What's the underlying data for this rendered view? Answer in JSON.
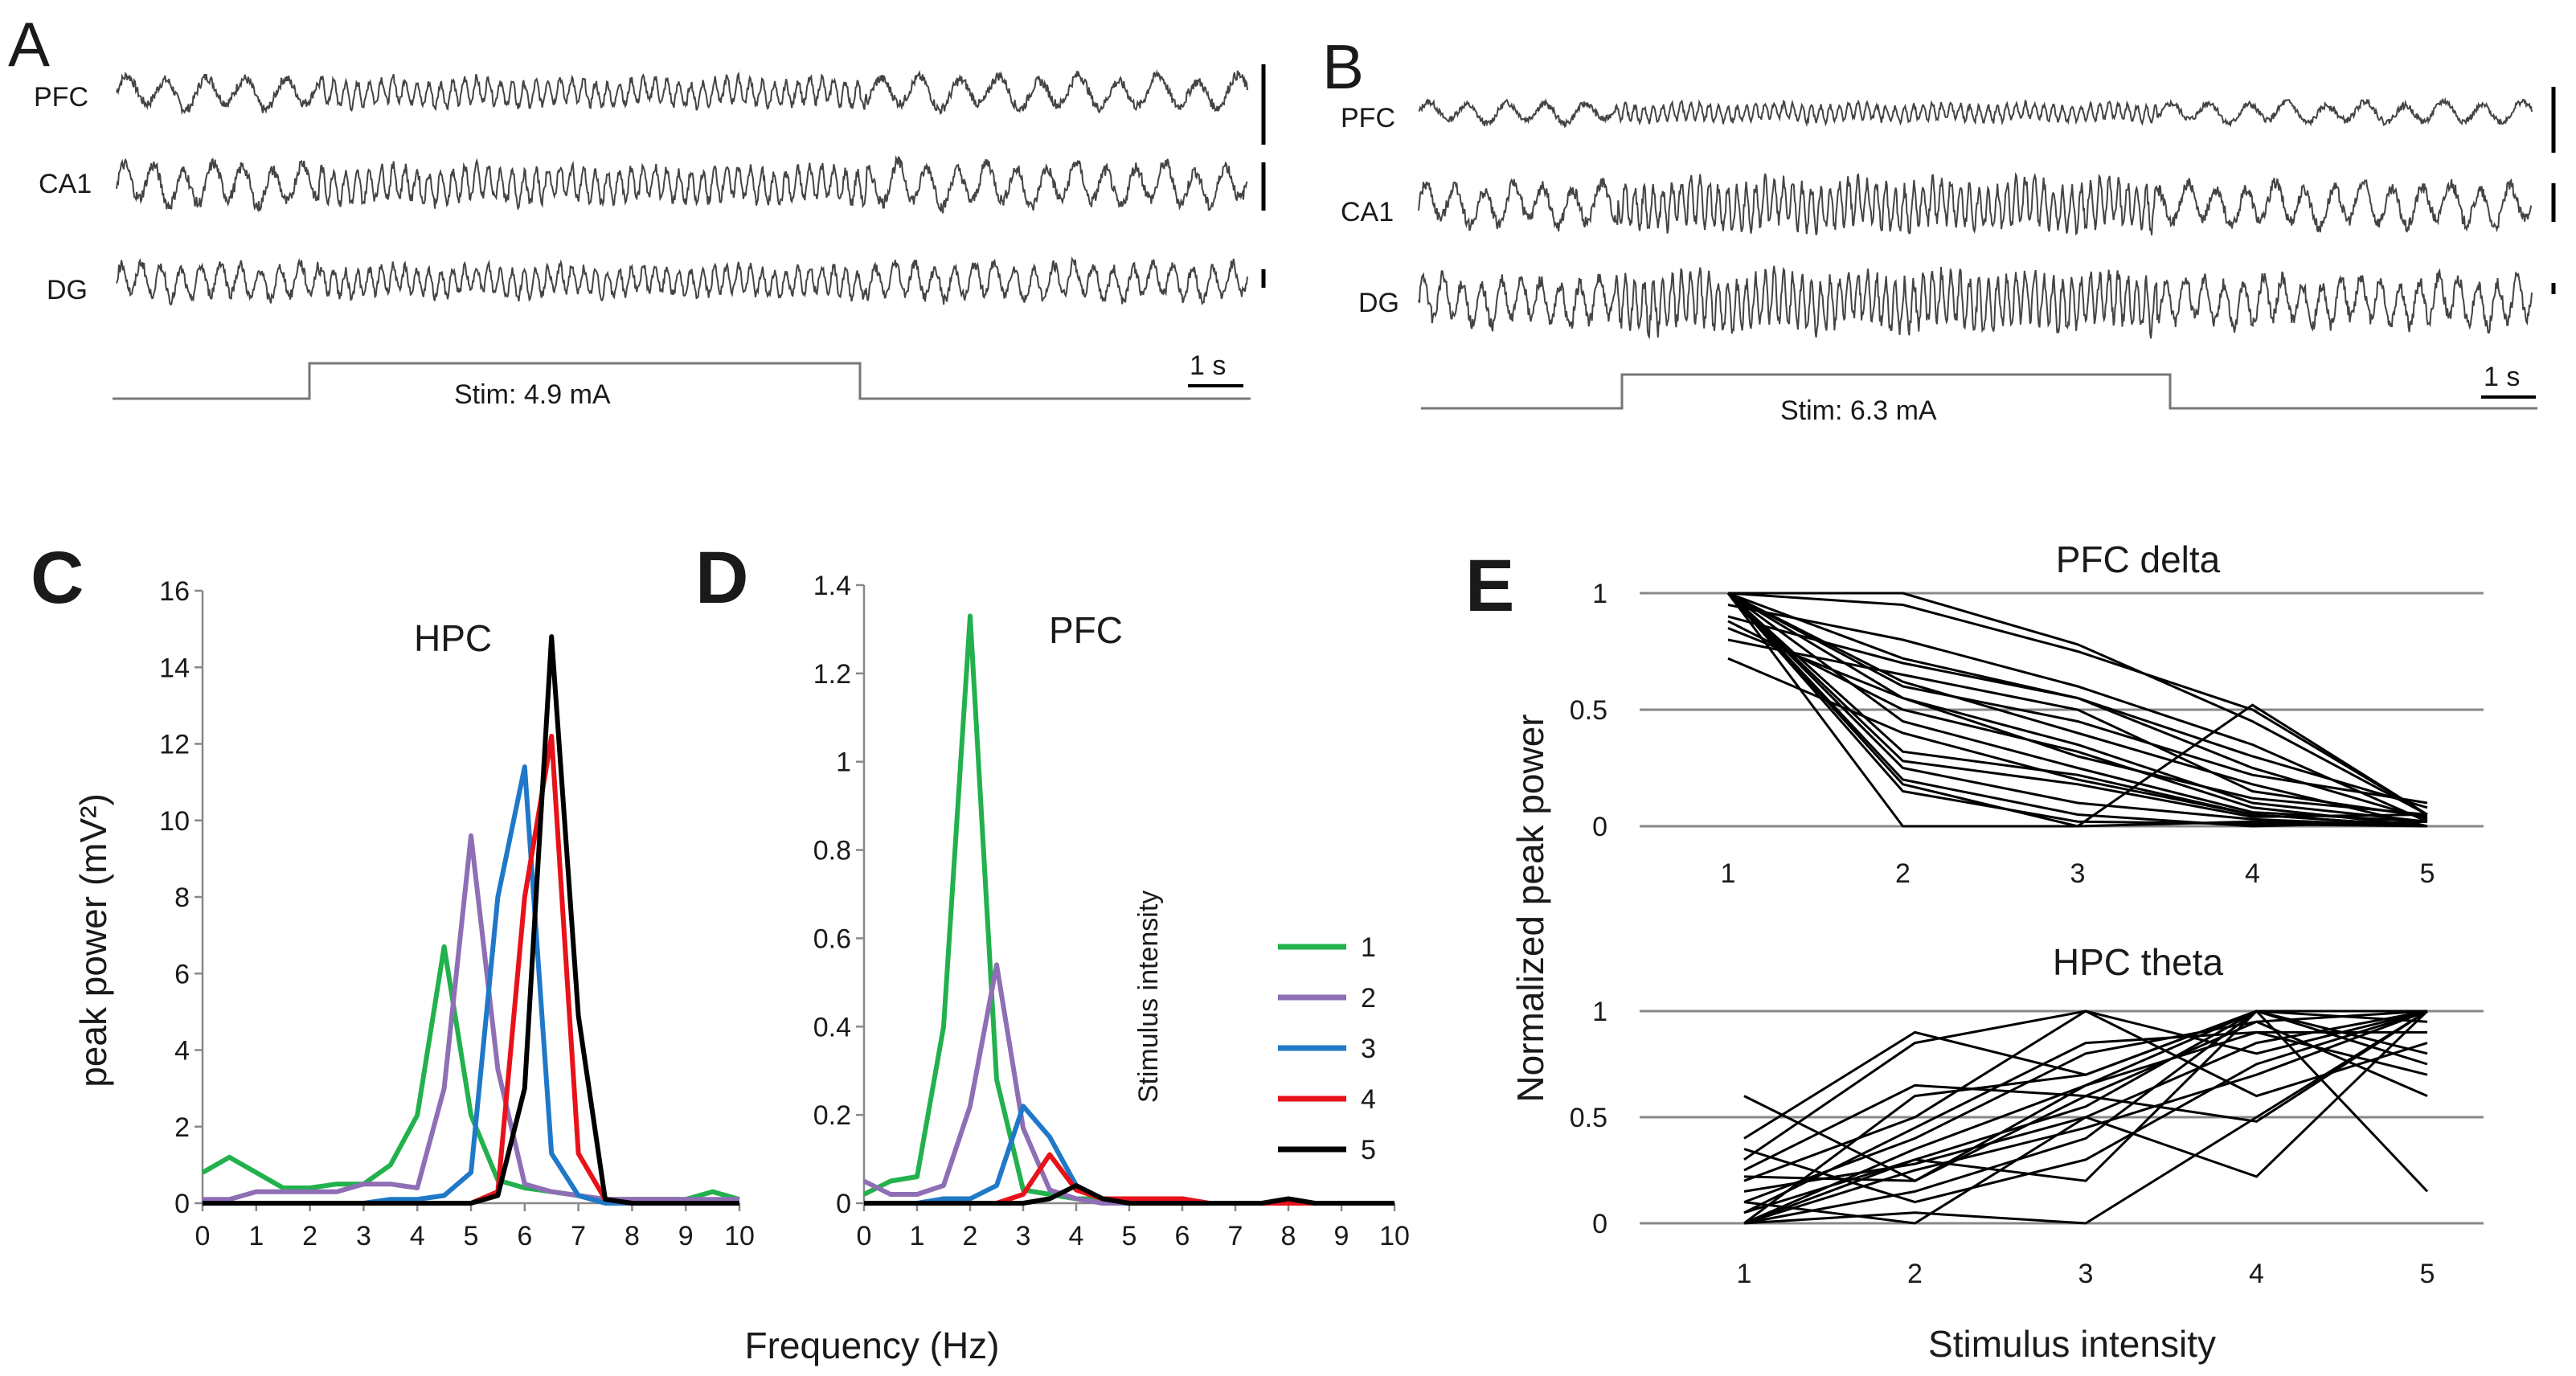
{
  "figure": {
    "panel_labels": [
      "A",
      "B",
      "C",
      "D",
      "E"
    ]
  },
  "chart_data": [
    {
      "panel": "A",
      "type": "line",
      "description_labels": [
        "PFC",
        "CA1",
        "DG"
      ],
      "stim_label": "Stim: 4.9 mA",
      "scalebar_label": "1 s",
      "trace_params": {
        "PFC": {
          "pre_freq_hz": 1.5,
          "stim_freq_hz": 5.0
        },
        "CA1": {
          "pre_freq_hz": 2.0,
          "stim_freq_hz": 5.0
        },
        "DG": {
          "pre_freq_hz": 3.0,
          "stim_freq_hz": 5.0
        }
      },
      "stim_on_s": 3.4,
      "stim_off_s": 12.6,
      "duration_s": 19
    },
    {
      "panel": "B",
      "type": "line",
      "description_labels": [
        "PFC",
        "CA1",
        "DG"
      ],
      "stim_label": "Stim: 6.3 mA",
      "scalebar_label": "1 s",
      "trace_params": {
        "PFC": {
          "pre_freq_hz": 1.5,
          "stim_freq_hz": 6.3
        },
        "CA1": {
          "pre_freq_hz": 2.0,
          "stim_freq_hz": 6.3
        },
        "DG": {
          "pre_freq_hz": 3.0,
          "stim_freq_hz": 6.3
        }
      },
      "stim_on_s": 3.4,
      "stim_off_s": 12.6,
      "duration_s": 19
    },
    {
      "panel": "C",
      "type": "line",
      "title": "HPC",
      "xlabel": "Frequency (Hz)",
      "ylabel": "peak power (mV²)",
      "xlim": [
        0,
        10
      ],
      "ylim": [
        0,
        16
      ],
      "xticks": [
        "0",
        "1",
        "2",
        "3",
        "4",
        "5",
        "6",
        "7",
        "8",
        "9",
        "10"
      ],
      "yticks": [
        "0",
        "2",
        "4",
        "6",
        "8",
        "10",
        "12",
        "14",
        "16"
      ],
      "x": [
        0,
        0.5,
        1,
        1.5,
        2,
        2.5,
        3,
        3.5,
        4,
        4.5,
        5,
        5.5,
        6,
        6.5,
        7,
        7.5,
        8,
        8.5,
        9,
        9.5,
        10
      ],
      "series": [
        {
          "name": "1",
          "color": "#22b14c",
          "values": [
            0.8,
            1.2,
            0.8,
            0.4,
            0.4,
            0.5,
            0.5,
            1.0,
            2.3,
            6.7,
            2.3,
            0.6,
            0.4,
            0.3,
            0.2,
            0.1,
            0.1,
            0.1,
            0.1,
            0.3,
            0.1
          ]
        },
        {
          "name": "2",
          "color": "#8e6fb5",
          "values": [
            0.1,
            0.1,
            0.3,
            0.3,
            0.3,
            0.3,
            0.5,
            0.5,
            0.4,
            3.0,
            9.6,
            3.5,
            0.5,
            0.3,
            0.2,
            0.1,
            0.1,
            0.1,
            0.1,
            0.1,
            0.1
          ]
        },
        {
          "name": "3",
          "color": "#1f78c8",
          "values": [
            0,
            0,
            0,
            0,
            0,
            0,
            0,
            0.1,
            0.1,
            0.2,
            0.8,
            8.0,
            11.4,
            1.3,
            0.2,
            0,
            0,
            0,
            0,
            0,
            0
          ]
        },
        {
          "name": "4",
          "color": "#e8121a",
          "values": [
            0,
            0,
            0,
            0,
            0,
            0,
            0,
            0,
            0,
            0,
            0,
            0.3,
            8.0,
            12.2,
            1.3,
            0.1,
            0,
            0,
            0,
            0,
            0
          ]
        },
        {
          "name": "5",
          "color": "#000000",
          "values": [
            0,
            0,
            0,
            0,
            0,
            0,
            0,
            0,
            0,
            0,
            0,
            0.2,
            3.0,
            14.8,
            4.9,
            0.1,
            0,
            0,
            0,
            0,
            0
          ]
        }
      ]
    },
    {
      "panel": "D",
      "type": "line",
      "title": "PFC",
      "xlabel": "Frequency (Hz)",
      "ylabel": "",
      "xlim": [
        0,
        10
      ],
      "ylim": [
        0,
        1.4
      ],
      "xticks": [
        "0",
        "1",
        "2",
        "3",
        "4",
        "5",
        "6",
        "7",
        "8",
        "9",
        "10"
      ],
      "yticks": [
        "0",
        "0.2",
        "0.4",
        "0.6",
        "0.8",
        "1",
        "1.2",
        "1.4"
      ],
      "x": [
        0,
        0.5,
        1,
        1.5,
        2,
        2.5,
        3,
        3.5,
        4,
        4.5,
        5,
        5.5,
        6,
        6.5,
        7,
        7.5,
        8,
        8.5,
        9,
        9.5,
        10
      ],
      "legend_title": "Stimulus intensity",
      "series": [
        {
          "name": "1",
          "color": "#22b14c",
          "values": [
            0.02,
            0.05,
            0.06,
            0.4,
            1.33,
            0.28,
            0.03,
            0.02,
            0.01,
            0.01,
            0.01,
            0.01,
            0.01,
            0,
            0,
            0,
            0,
            0,
            0,
            0,
            0
          ]
        },
        {
          "name": "2",
          "color": "#8e6fb5",
          "values": [
            0.05,
            0.02,
            0.02,
            0.04,
            0.22,
            0.54,
            0.17,
            0.03,
            0.01,
            0,
            0,
            0,
            0,
            0,
            0,
            0,
            0,
            0,
            0,
            0,
            0
          ]
        },
        {
          "name": "3",
          "color": "#1f78c8",
          "values": [
            0,
            0,
            0,
            0.01,
            0.01,
            0.04,
            0.22,
            0.15,
            0.04,
            0.01,
            0,
            0,
            0,
            0,
            0,
            0,
            0,
            0,
            0,
            0,
            0
          ]
        },
        {
          "name": "4",
          "color": "#e8121a",
          "values": [
            0,
            0,
            0,
            0,
            0,
            0,
            0.02,
            0.11,
            0.03,
            0.01,
            0.01,
            0.01,
            0.01,
            0,
            0,
            0,
            0,
            0,
            0,
            0,
            0
          ]
        },
        {
          "name": "5",
          "color": "#000000",
          "values": [
            0,
            0,
            0,
            0,
            0,
            0,
            0,
            0.01,
            0.04,
            0.01,
            0,
            0,
            0,
            0,
            0,
            0,
            0.01,
            0,
            0,
            0,
            0
          ]
        }
      ]
    },
    {
      "panel": "E",
      "type": "line",
      "subplots": [
        {
          "title": "PFC delta",
          "categories": [
            "1",
            "2",
            "3",
            "4",
            "5"
          ],
          "ylim": [
            0,
            1
          ],
          "yticks": [
            "0",
            "0.5",
            "1"
          ],
          "series": [
            [
              1,
              0.95,
              0.75,
              0.5,
              0.05
            ],
            [
              1,
              1,
              0.78,
              0.45,
              0.05
            ],
            [
              0.95,
              0.8,
              0.6,
              0.35,
              0.02
            ],
            [
              0.9,
              0.7,
              0.55,
              0.3,
              0.08
            ],
            [
              1,
              0.72,
              0.55,
              0.25,
              0.03
            ],
            [
              1,
              0.6,
              0.45,
              0.22,
              0.1
            ],
            [
              0.85,
              0.55,
              0.35,
              0.1,
              0.02
            ],
            [
              1,
              0.55,
              0.3,
              0.12,
              0.05
            ],
            [
              0.88,
              0.5,
              0.32,
              0.08,
              0
            ],
            [
              1,
              0.45,
              0.25,
              0.06,
              0.02
            ],
            [
              0.72,
              0.4,
              0.2,
              0.05,
              0
            ],
            [
              1,
              0.32,
              0.22,
              0.05,
              0
            ],
            [
              1,
              0.28,
              0.18,
              0.04,
              0.05
            ],
            [
              1,
              0.25,
              0.1,
              0.03,
              0
            ],
            [
              1,
              0.2,
              0.05,
              0,
              0.02
            ],
            [
              1,
              0.18,
              0,
              0.02,
              0
            ],
            [
              1,
              0.15,
              0.02,
              0.01,
              0
            ],
            [
              1,
              0,
              0,
              0.52,
              0.05
            ],
            [
              0.8,
              0.65,
              0.5,
              0.15,
              0.04
            ],
            [
              1,
              0.62,
              0.4,
              0.18,
              0
            ]
          ]
        },
        {
          "title": "HPC theta",
          "categories": [
            "1",
            "2",
            "3",
            "4",
            "5"
          ],
          "ylim": [
            0,
            1
          ],
          "yticks": [
            "0",
            "0.5",
            "1"
          ],
          "series": [
            [
              0.6,
              0.2,
              0.65,
              1,
              0.15
            ],
            [
              0.4,
              0.9,
              0.7,
              1,
              1
            ],
            [
              0.3,
              0.85,
              1,
              0.8,
              1
            ],
            [
              0.2,
              0.5,
              1,
              0.6,
              0.85
            ],
            [
              0.1,
              0.4,
              0.8,
              0.95,
              1
            ],
            [
              0,
              0.35,
              0.65,
              0.9,
              0.9
            ],
            [
              0.05,
              0.3,
              0.55,
              1,
              0.75
            ],
            [
              0.15,
              0.28,
              0.5,
              0.85,
              1
            ],
            [
              0,
              0.25,
              0.45,
              0.7,
              1
            ],
            [
              0.22,
              0.2,
              0.6,
              0.95,
              0.6
            ],
            [
              0,
              0.15,
              0.4,
              1,
              0.95
            ],
            [
              0.35,
              0.1,
              0.3,
              0.75,
              1
            ],
            [
              0,
              0.05,
              0,
              0.5,
              1
            ],
            [
              0.1,
              0,
              0.5,
              0.22,
              1
            ],
            [
              0,
              0.6,
              0.7,
              1,
              1
            ],
            [
              0.05,
              0.45,
              0.85,
              0.9,
              0.7
            ],
            [
              0.25,
              0.65,
              0.6,
              0.48,
              1
            ],
            [
              0,
              0.3,
              0.2,
              1,
              0.8
            ]
          ]
        }
      ],
      "xlabel": "Stimulus intensity",
      "ylabel": "Normalized peak power"
    }
  ]
}
